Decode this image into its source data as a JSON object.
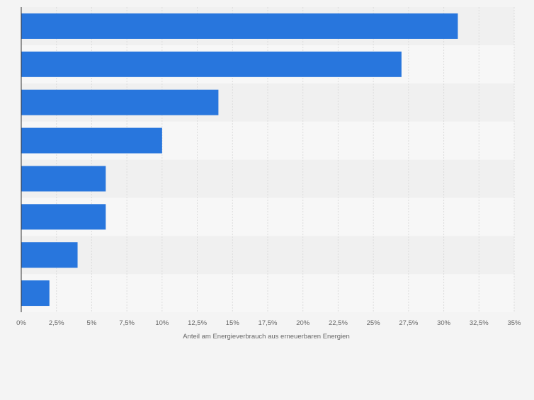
{
  "chart_data": {
    "type": "bar",
    "orientation": "horizontal",
    "categories": [
      "",
      "",
      "",
      "",
      "",
      "",
      "",
      ""
    ],
    "values": [
      31,
      27,
      14,
      10,
      6,
      6,
      4,
      2
    ],
    "title": "",
    "xlabel": "Anteil am Energieverbrauch aus erneuerbaren Energien",
    "ylabel": "",
    "xlim": [
      0,
      35
    ],
    "ticks": [
      {
        "value": 0,
        "label": "0%"
      },
      {
        "value": 2.5,
        "label": "2,5%"
      },
      {
        "value": 5,
        "label": "5%"
      },
      {
        "value": 7.5,
        "label": "7,5%"
      },
      {
        "value": 10,
        "label": "10%"
      },
      {
        "value": 12.5,
        "label": "12,5%"
      },
      {
        "value": 15,
        "label": "15%"
      },
      {
        "value": 17.5,
        "label": "17,5%"
      },
      {
        "value": 20,
        "label": "20%"
      },
      {
        "value": 22.5,
        "label": "22,5%"
      },
      {
        "value": 25,
        "label": "25%"
      },
      {
        "value": 27.5,
        "label": "27,5%"
      },
      {
        "value": 30,
        "label": "30%"
      },
      {
        "value": 32.5,
        "label": "32,5%"
      },
      {
        "value": 35,
        "label": "35%"
      }
    ],
    "grid": true,
    "legend": "none",
    "colors": {
      "bar": "#2876dd",
      "band_dark": "#f0f0f0",
      "band_light": "#f7f7f7",
      "grid": "#dcdcdc",
      "axis": "#333333",
      "text": "#666666"
    }
  }
}
